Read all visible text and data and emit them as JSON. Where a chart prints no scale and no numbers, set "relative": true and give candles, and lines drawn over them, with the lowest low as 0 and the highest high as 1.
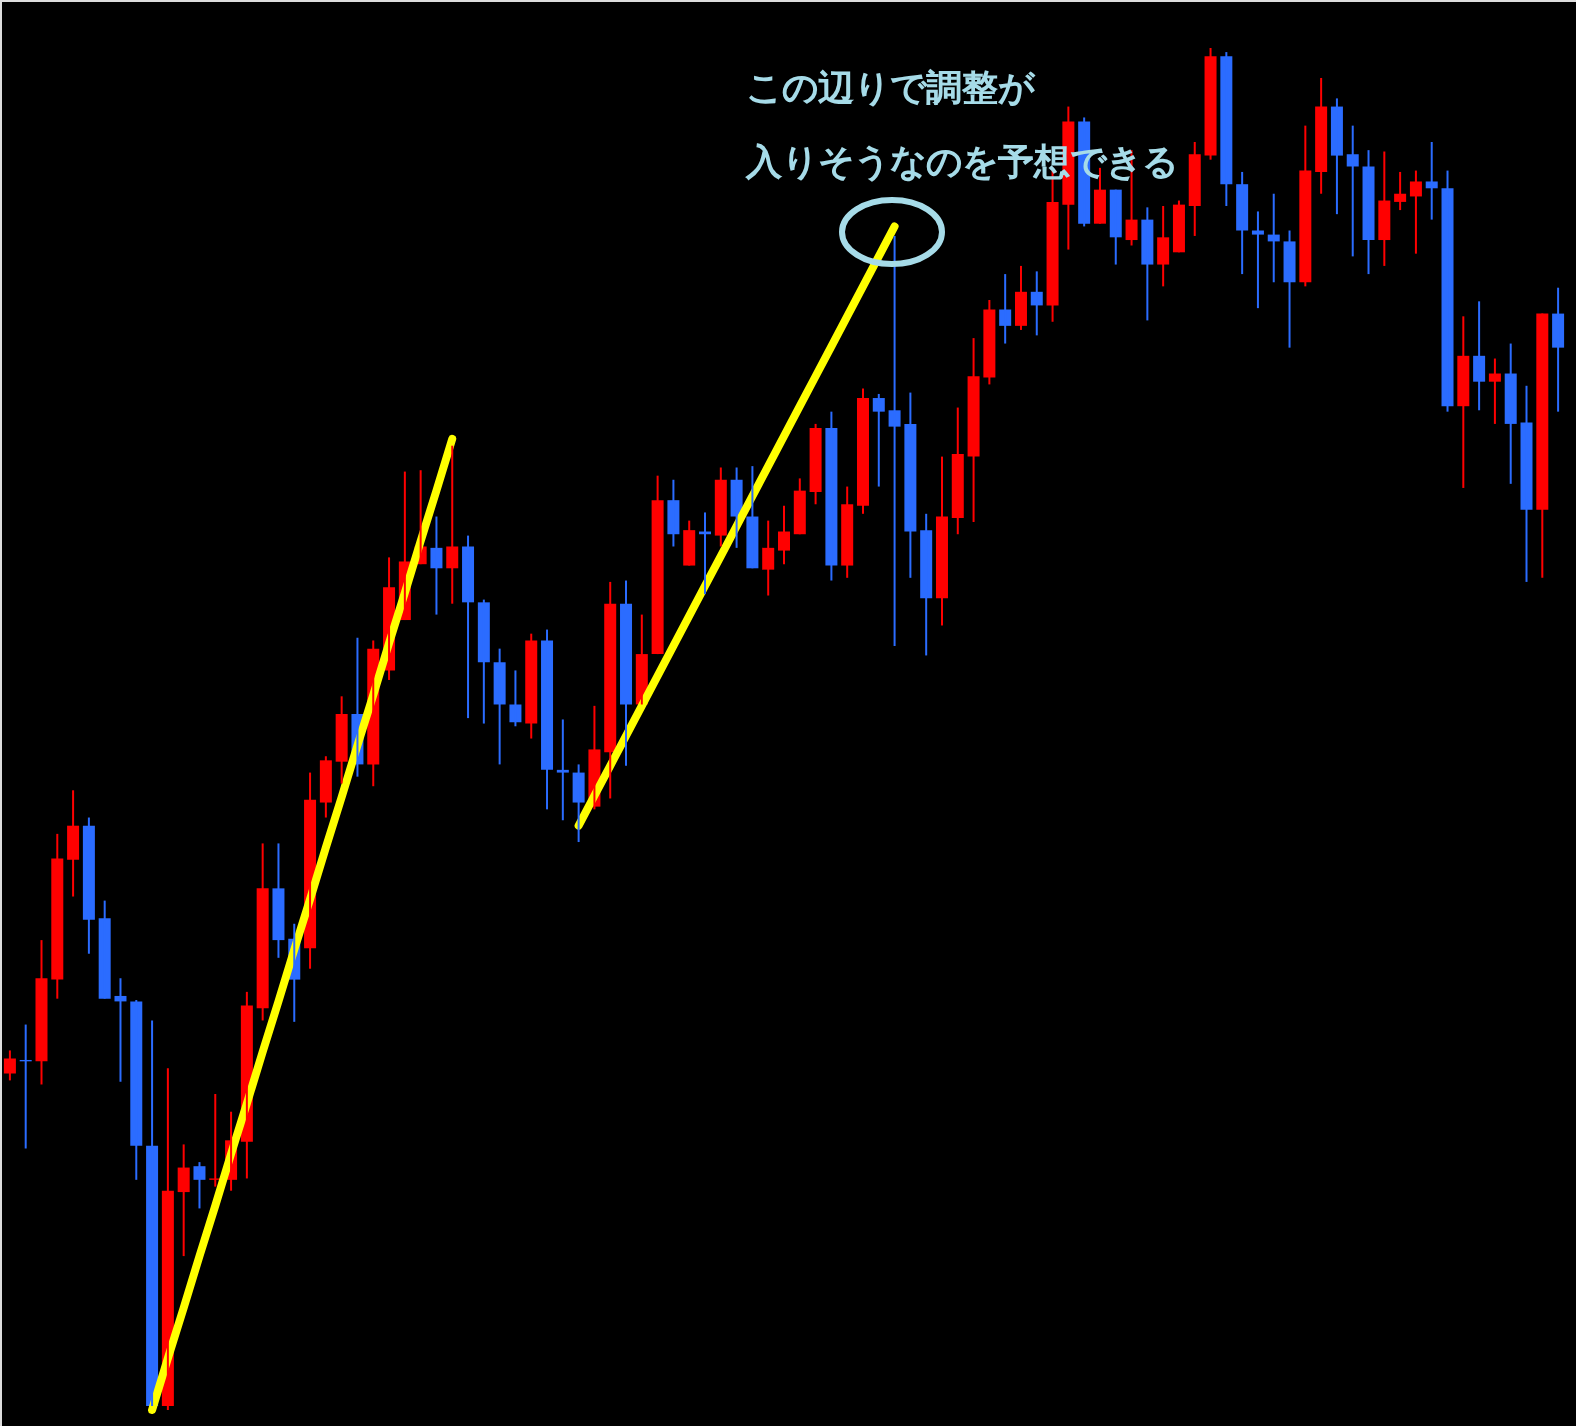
{
  "chart_data": {
    "type": "candlestick",
    "relative": true,
    "categories": [
      null,
      null,
      null,
      null,
      null,
      null,
      null,
      null,
      null,
      null,
      null,
      null,
      null,
      null,
      null,
      null,
      null,
      null,
      null,
      null,
      null,
      null,
      null,
      null,
      null,
      null,
      null,
      null,
      null,
      null,
      null,
      null,
      null,
      null,
      null,
      null,
      null,
      null,
      null,
      null,
      null,
      null,
      null,
      null,
      null,
      null,
      null,
      null,
      null,
      null,
      null,
      null,
      null,
      null,
      null,
      null,
      null,
      null,
      null,
      null,
      null,
      null,
      null,
      null,
      null,
      null,
      null,
      null,
      null,
      null,
      null,
      null,
      null,
      null,
      null,
      null,
      null,
      null,
      null,
      null,
      null,
      null,
      null,
      null,
      null,
      null,
      null,
      null,
      null,
      null,
      null,
      null,
      null,
      null,
      null,
      null,
      null,
      null,
      null
    ],
    "ohlc": [
      [
        0.247,
        0.264,
        0.242,
        0.258
      ],
      [
        0.257,
        0.283,
        0.192,
        0.256
      ],
      [
        0.256,
        0.345,
        0.239,
        0.317
      ],
      [
        0.316,
        0.423,
        0.302,
        0.405
      ],
      [
        0.404,
        0.455,
        0.377,
        0.429
      ],
      [
        0.429,
        0.435,
        0.335,
        0.36
      ],
      [
        0.361,
        0.374,
        0.302,
        0.302
      ],
      [
        0.304,
        0.317,
        0.241,
        0.3
      ],
      [
        0.3,
        0.301,
        0.169,
        0.194
      ],
      [
        0.194,
        0.286,
        0.003,
        0.003
      ],
      [
        0.003,
        0.251,
        0,
        0.161
      ],
      [
        0.16,
        0.195,
        0.113,
        0.178
      ],
      [
        0.179,
        0.182,
        0.148,
        0.169
      ],
      [
        0.169,
        0.232,
        0.164,
        0.17
      ],
      [
        0.169,
        0.219,
        0.161,
        0.198
      ],
      [
        0.197,
        0.307,
        0.17,
        0.297
      ],
      [
        0.295,
        0.416,
        0.286,
        0.383
      ],
      [
        0.383,
        0.416,
        0.332,
        0.345
      ],
      [
        0.346,
        0.357,
        0.285,
        0.316
      ],
      [
        0.339,
        0.468,
        0.324,
        0.448
      ],
      [
        0.446,
        0.48,
        0.435,
        0.477
      ],
      [
        0.476,
        0.524,
        0.46,
        0.511
      ],
      [
        0.511,
        0.567,
        0.465,
        0.474
      ],
      [
        0.474,
        0.565,
        0.458,
        0.559
      ],
      [
        0.543,
        0.626,
        0.536,
        0.604
      ],
      [
        0.58,
        0.689,
        0.58,
        0.623
      ],
      [
        0.621,
        0.69,
        0.621,
        0.634
      ],
      [
        0.633,
        0.656,
        0.584,
        0.618
      ],
      [
        0.618,
        0.708,
        0.592,
        0.634
      ],
      [
        0.634,
        0.642,
        0.508,
        0.593
      ],
      [
        0.593,
        0.595,
        0.504,
        0.549
      ],
      [
        0.549,
        0.559,
        0.474,
        0.518
      ],
      [
        0.518,
        0.543,
        0.502,
        0.505
      ],
      [
        0.504,
        0.57,
        0.493,
        0.565
      ],
      [
        0.565,
        0.573,
        0.441,
        0.47
      ],
      [
        0.47,
        0.507,
        0.433,
        0.468
      ],
      [
        0.468,
        0.474,
        0.417,
        0.446
      ],
      [
        0.443,
        0.517,
        0.441,
        0.485
      ],
      [
        0.483,
        0.608,
        0.449,
        0.592
      ],
      [
        0.592,
        0.609,
        0.473,
        0.518
      ],
      [
        0.518,
        0.584,
        0.518,
        0.555
      ],
      [
        0.555,
        0.686,
        0.555,
        0.668
      ],
      [
        0.668,
        0.683,
        0.634,
        0.643
      ],
      [
        0.62,
        0.653,
        0.62,
        0.646
      ],
      [
        0.645,
        0.659,
        0.599,
        0.643
      ],
      [
        0.642,
        0.692,
        0.634,
        0.683
      ],
      [
        0.683,
        0.692,
        0.633,
        0.656
      ],
      [
        0.656,
        0.693,
        0.618,
        0.618
      ],
      [
        0.617,
        0.653,
        0.598,
        0.633
      ],
      [
        0.631,
        0.664,
        0.621,
        0.645
      ],
      [
        0.643,
        0.684,
        0.643,
        0.675
      ],
      [
        0.674,
        0.724,
        0.665,
        0.721
      ],
      [
        0.721,
        0.733,
        0.609,
        0.62
      ],
      [
        0.62,
        0.678,
        0.611,
        0.665
      ],
      [
        0.664,
        0.75,
        0.658,
        0.743
      ],
      [
        0.743,
        0.746,
        0.678,
        0.733
      ],
      [
        0.734,
        0.862,
        0.561,
        0.722
      ],
      [
        0.724,
        0.747,
        0.611,
        0.645
      ],
      [
        0.646,
        0.658,
        0.554,
        0.596
      ],
      [
        0.596,
        0.7,
        0.576,
        0.656
      ],
      [
        0.655,
        0.736,
        0.643,
        0.702
      ],
      [
        0.7,
        0.787,
        0.652,
        0.759
      ],
      [
        0.758,
        0.815,
        0.753,
        0.808
      ],
      [
        0.808,
        0.834,
        0.783,
        0.796
      ],
      [
        0.796,
        0.84,
        0.793,
        0.821
      ],
      [
        0.821,
        0.836,
        0.789,
        0.811
      ],
      [
        0.811,
        0.91,
        0.799,
        0.887
      ],
      [
        0.885,
        0.957,
        0.852,
        0.946
      ],
      [
        0.946,
        0.949,
        0.869,
        0.871
      ],
      [
        0.871,
        0.912,
        0.871,
        0.896
      ],
      [
        0.896,
        0.896,
        0.841,
        0.861
      ],
      [
        0.859,
        0.925,
        0.855,
        0.874
      ],
      [
        0.874,
        0.883,
        0.8,
        0.841
      ],
      [
        0.841,
        0.884,
        0.825,
        0.861
      ],
      [
        0.85,
        0.888,
        0.85,
        0.885
      ],
      [
        0.884,
        0.931,
        0.862,
        0.922
      ],
      [
        0.921,
        1,
        0.918,
        0.994
      ],
      [
        0.994,
        0.997,
        0.884,
        0.9
      ],
      [
        0.9,
        0.909,
        0.834,
        0.866
      ],
      [
        0.866,
        0.88,
        0.809,
        0.863
      ],
      [
        0.863,
        0.893,
        0.828,
        0.858
      ],
      [
        0.858,
        0.866,
        0.78,
        0.828
      ],
      [
        0.828,
        0.943,
        0.825,
        0.91
      ],
      [
        0.909,
        0.978,
        0.893,
        0.957
      ],
      [
        0.957,
        0.963,
        0.878,
        0.921
      ],
      [
        0.922,
        0.943,
        0.847,
        0.913
      ],
      [
        0.913,
        0.925,
        0.834,
        0.859
      ],
      [
        0.859,
        0.924,
        0.84,
        0.888
      ],
      [
        0.887,
        0.909,
        0.881,
        0.893
      ],
      [
        0.891,
        0.91,
        0.849,
        0.902
      ],
      [
        0.902,
        0.931,
        0.874,
        0.897
      ],
      [
        0.897,
        0.91,
        0.733,
        0.737
      ],
      [
        0.737,
        0.803,
        0.677,
        0.774
      ],
      [
        0.774,
        0.814,
        0.734,
        0.755
      ],
      [
        0.755,
        0.772,
        0.724,
        0.761
      ],
      [
        0.761,
        0.783,
        0.68,
        0.724
      ],
      [
        0.725,
        0.752,
        0.608,
        0.661
      ],
      [
        0.661,
        0.805,
        0.611,
        0.805
      ],
      [
        0.805,
        0.824,
        0.733,
        0.78
      ]
    ],
    "colors": [
      "#ff0000",
      "#2b6cff",
      "#ff0000",
      "#ff0000",
      "#ff0000",
      "#2b6cff",
      "#2b6cff",
      "#2b6cff",
      "#2b6cff",
      "#2b6cff",
      "#ff0000",
      "#ff0000",
      "#2b6cff",
      "#ff0000",
      "#ff0000",
      "#ff0000",
      "#ff0000",
      "#2b6cff",
      "#2b6cff",
      "#ff0000",
      "#ff0000",
      "#ff0000",
      "#2b6cff",
      "#ff0000",
      "#ff0000",
      "#ff0000",
      "#ff0000",
      "#2b6cff",
      "#ff0000",
      "#2b6cff",
      "#2b6cff",
      "#2b6cff",
      "#2b6cff",
      "#ff0000",
      "#2b6cff",
      "#2b6cff",
      "#2b6cff",
      "#ff0000",
      "#ff0000",
      "#2b6cff",
      "#ff0000",
      "#ff0000",
      "#2b6cff",
      "#ff0000",
      "#2b6cff",
      "#ff0000",
      "#2b6cff",
      "#2b6cff",
      "#ff0000",
      "#ff0000",
      "#ff0000",
      "#ff0000",
      "#2b6cff",
      "#ff0000",
      "#ff0000",
      "#2b6cff",
      "#2b6cff",
      "#2b6cff",
      "#2b6cff",
      "#ff0000",
      "#ff0000",
      "#ff0000",
      "#ff0000",
      "#2b6cff",
      "#ff0000",
      "#2b6cff",
      "#ff0000",
      "#ff0000",
      "#2b6cff",
      "#ff0000",
      "#2b6cff",
      "#ff0000",
      "#2b6cff",
      "#ff0000",
      "#ff0000",
      "#ff0000",
      "#ff0000",
      "#2b6cff",
      "#2b6cff",
      "#2b6cff",
      "#2b6cff",
      "#2b6cff",
      "#ff0000",
      "#ff0000",
      "#2b6cff",
      "#2b6cff",
      "#2b6cff",
      "#ff0000",
      "#ff0000",
      "#ff0000",
      "#2b6cff",
      "#2b6cff",
      "#ff0000",
      "#2b6cff",
      "#ff0000",
      "#2b6cff",
      "#2b6cff",
      "#ff0000",
      "#2b6cff"
    ],
    "series": [
      {
        "type": "line",
        "color": "#ffff00",
        "values": [
          null,
          null,
          null,
          null,
          null,
          null,
          null,
          null,
          null,
          0,
          0.038,
          0.075,
          0.113,
          0.15,
          0.188,
          0.225,
          0.263,
          0.3,
          0.338,
          0.375,
          0.413,
          0.45,
          0.488,
          0.525,
          0.563,
          0.6,
          0.638,
          0.675,
          0.713,
          null,
          null,
          null,
          null,
          null,
          null,
          null,
          null,
          null,
          null,
          null,
          null,
          null,
          null,
          null,
          null,
          null,
          null,
          null,
          null,
          null,
          null,
          null,
          null,
          null,
          null,
          null,
          null,
          null,
          null,
          null,
          null,
          null,
          null,
          null,
          null,
          null,
          null,
          null,
          null,
          null,
          null,
          null,
          null,
          null,
          null,
          null,
          null,
          null,
          null,
          null,
          null,
          null,
          null,
          null,
          null,
          null,
          null,
          null,
          null,
          null,
          null,
          null,
          null,
          null,
          null,
          null,
          null,
          null,
          null
        ]
      },
      {
        "type": "line",
        "color": "#ffff00",
        "values": [
          null,
          null,
          null,
          null,
          null,
          null,
          null,
          null,
          null,
          null,
          null,
          null,
          null,
          null,
          null,
          null,
          null,
          null,
          null,
          null,
          null,
          null,
          null,
          null,
          null,
          null,
          null,
          null,
          null,
          null,
          null,
          null,
          null,
          null,
          null,
          null,
          0.429,
          0.451,
          0.473,
          0.495,
          0.517,
          0.539,
          0.561,
          0.583,
          0.605,
          0.627,
          0.649,
          0.671,
          0.693,
          0.715,
          0.737,
          0.759,
          0.781,
          0.803,
          0.825,
          0.847,
          0.869,
          null,
          null,
          null,
          null,
          null,
          null,
          null,
          null,
          null,
          null,
          null,
          null,
          null,
          null,
          null,
          null,
          null,
          null,
          null,
          null,
          null,
          null,
          null,
          null,
          null,
          null,
          null,
          null,
          null,
          null,
          null,
          null,
          null,
          null,
          null,
          null,
          null,
          null,
          null,
          null,
          null,
          null
        ]
      }
    ],
    "annotations": [
      "この辺りで調整が",
      "入りそうなのを予想できる"
    ]
  }
}
